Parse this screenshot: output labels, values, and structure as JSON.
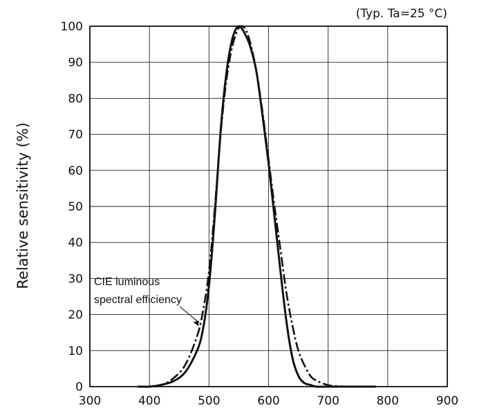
{
  "chart_data": {
    "type": "line",
    "title": "",
    "condition_note": "(Typ. Ta=25 °C)",
    "xlabel": "",
    "ylabel": "Relative sensitivity (%)",
    "xlim": [
      300,
      900
    ],
    "ylim": [
      0,
      100
    ],
    "xticks": [
      300,
      400,
      500,
      600,
      700,
      800,
      900
    ],
    "yticks": [
      0,
      10,
      20,
      30,
      40,
      50,
      60,
      70,
      80,
      90,
      100
    ],
    "grid": true,
    "series": [
      {
        "style": "solid",
        "x": [
          380,
          400,
          420,
          440,
          460,
          480,
          490,
          500,
          510,
          520,
          530,
          540,
          550,
          560,
          570,
          580,
          590,
          600,
          610,
          620,
          630,
          640,
          650,
          660,
          670,
          680,
          700,
          720,
          750,
          780
        ],
        "y": [
          0,
          0,
          0.5,
          1.5,
          4,
          10,
          16,
          28,
          48,
          72,
          88,
          97,
          100,
          98,
          94,
          87,
          75,
          62,
          47,
          32,
          18,
          8,
          3,
          1,
          0.5,
          0,
          0,
          0,
          0,
          0
        ]
      },
      {
        "style": "dash-dot",
        "x": [
          380,
          400,
          420,
          440,
          460,
          480,
          490,
          500,
          510,
          520,
          530,
          540,
          550,
          560,
          570,
          580,
          590,
          600,
          610,
          620,
          630,
          640,
          650,
          660,
          670,
          680,
          700,
          720,
          750,
          780
        ],
        "y": [
          0,
          0,
          0.4,
          2.3,
          6,
          14,
          21,
          32,
          50,
          71,
          86,
          95,
          99.5,
          99.5,
          95,
          87,
          76,
          63,
          50,
          38,
          26,
          17,
          10,
          6,
          3,
          1.7,
          0.4,
          0.1,
          0,
          0
        ]
      }
    ],
    "annotations": [
      {
        "lines": [
          "CIE luminous",
          "spectral efficiency"
        ],
        "points_to": [
          482,
          16
        ]
      }
    ]
  }
}
